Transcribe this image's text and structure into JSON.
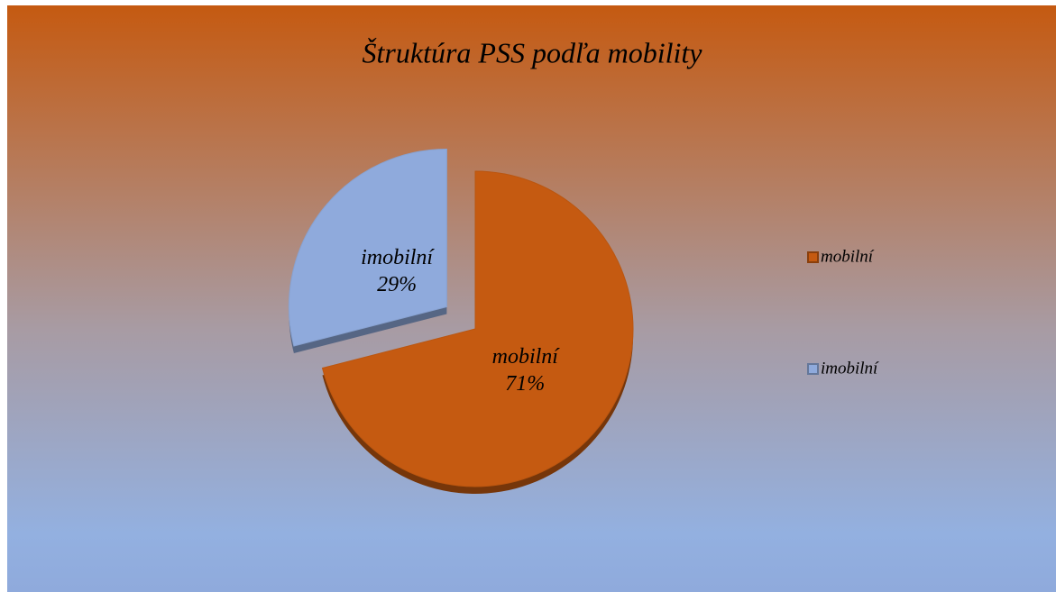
{
  "chart_data": {
    "type": "pie",
    "title": "Štruktúra PSS podľa mobility",
    "categories": [
      "mobilní",
      "imobilní"
    ],
    "values": [
      71,
      29
    ],
    "value_labels": [
      "71%",
      "29%"
    ],
    "colors": [
      "#c55a11",
      "#8faadc"
    ],
    "exploded": [
      false,
      true
    ],
    "legend": "right"
  }
}
